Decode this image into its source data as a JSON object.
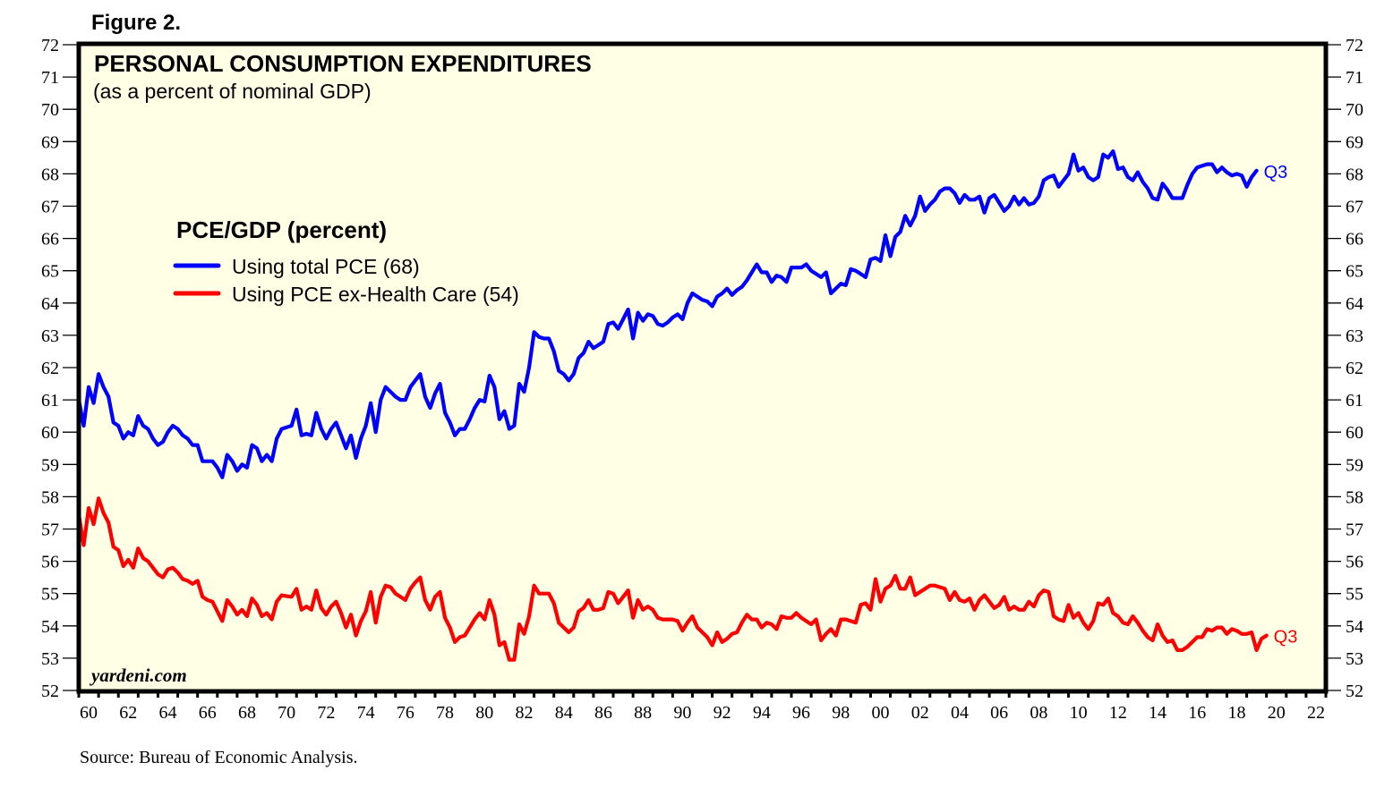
{
  "figure_label": "Figure 2.",
  "source": "Source: Bureau of Economic Analysis.",
  "watermark": "yardeni.com",
  "chart_data": {
    "type": "line",
    "title": "PERSONAL CONSUMPTION EXPENDITURES",
    "subtitle": "(as a percent of nominal GDP)",
    "legend_title": "PCE/GDP (percent)",
    "legend_position": "upper-left",
    "xlabel": "",
    "ylabel": "",
    "xlim": [
      1960,
      2023
    ],
    "ylim": [
      52,
      72
    ],
    "y_ticks": [
      52,
      53,
      54,
      55,
      56,
      57,
      58,
      59,
      60,
      61,
      62,
      63,
      64,
      65,
      66,
      67,
      68,
      69,
      70,
      71,
      72
    ],
    "x_tick_labels": [
      "60",
      "62",
      "64",
      "66",
      "68",
      "70",
      "72",
      "74",
      "76",
      "78",
      "80",
      "82",
      "84",
      "86",
      "88",
      "90",
      "92",
      "94",
      "96",
      "98",
      "00",
      "02",
      "04",
      "06",
      "08",
      "10",
      "12",
      "14",
      "16",
      "18",
      "20",
      "22"
    ],
    "x_tick_label_years": [
      1960,
      1962,
      1964,
      1966,
      1968,
      1970,
      1972,
      1974,
      1976,
      1978,
      1980,
      1982,
      1984,
      1986,
      1988,
      1990,
      1992,
      1994,
      1996,
      1998,
      2000,
      2002,
      2004,
      2006,
      2008,
      2010,
      2012,
      2014,
      2016,
      2018,
      2020,
      2022
    ],
    "grid": false,
    "background": "#FFFFE6",
    "series": [
      {
        "name": "Using total PCE (68)",
        "color": "#0000FF",
        "end_label": "Q3",
        "frequency": "quarterly",
        "start": 1960.0,
        "values": [
          61.0,
          60.2,
          61.4,
          60.9,
          61.8,
          61.4,
          61.1,
          60.3,
          60.2,
          59.8,
          60.0,
          59.9,
          60.5,
          60.2,
          60.1,
          59.8,
          59.6,
          59.7,
          60.0,
          60.2,
          60.1,
          59.9,
          59.8,
          59.6,
          59.6,
          59.1,
          59.1,
          59.1,
          58.9,
          58.6,
          59.3,
          59.1,
          58.8,
          59.0,
          58.9,
          59.6,
          59.5,
          59.1,
          59.3,
          59.1,
          59.8,
          60.1,
          60.15,
          60.2,
          60.7,
          59.9,
          59.95,
          59.9,
          60.6,
          60.1,
          59.8,
          60.1,
          60.3,
          59.9,
          59.5,
          59.9,
          59.2,
          59.8,
          60.2,
          60.9,
          60.0,
          61.0,
          61.4,
          61.25,
          61.1,
          61.0,
          61.0,
          61.4,
          61.6,
          61.8,
          61.1,
          60.75,
          61.2,
          61.5,
          60.6,
          60.3,
          59.9,
          60.1,
          60.1,
          60.4,
          60.75,
          61.0,
          60.95,
          61.75,
          61.4,
          60.4,
          60.65,
          60.1,
          60.2,
          61.5,
          61.25,
          62.0,
          63.1,
          62.95,
          62.9,
          62.9,
          62.5,
          61.9,
          61.8,
          61.6,
          61.8,
          62.3,
          62.45,
          62.8,
          62.6,
          62.7,
          62.8,
          63.35,
          63.4,
          63.2,
          63.5,
          63.8,
          62.9,
          63.7,
          63.45,
          63.65,
          63.6,
          63.35,
          63.3,
          63.4,
          63.55,
          63.65,
          63.5,
          64.0,
          64.3,
          64.2,
          64.1,
          64.05,
          63.9,
          64.2,
          64.3,
          64.45,
          64.25,
          64.4,
          64.5,
          64.7,
          64.95,
          65.2,
          64.95,
          64.95,
          64.65,
          64.85,
          64.8,
          64.65,
          65.1,
          65.1,
          65.1,
          65.2,
          65.0,
          64.9,
          64.8,
          64.95,
          64.3,
          64.45,
          64.6,
          64.55,
          65.05,
          65.0,
          64.9,
          64.8,
          65.35,
          65.4,
          65.3,
          66.1,
          65.45,
          66.05,
          66.2,
          66.7,
          66.4,
          66.7,
          67.3,
          66.85,
          67.05,
          67.2,
          67.45,
          67.55,
          67.55,
          67.4,
          67.1,
          67.35,
          67.2,
          67.2,
          67.3,
          66.8,
          67.25,
          67.35,
          67.1,
          66.85,
          67.0,
          67.3,
          67.05,
          67.25,
          67.05,
          67.1,
          67.3,
          67.8,
          67.9,
          67.95,
          67.6,
          67.8,
          68.0,
          68.6,
          68.1,
          68.2,
          67.9,
          67.8,
          67.9,
          68.6,
          68.5,
          68.7,
          68.15,
          68.2,
          67.9,
          67.8,
          68.05,
          67.75,
          67.55,
          67.25,
          67.2,
          67.7,
          67.5,
          67.25,
          67.25,
          67.25,
          67.65,
          68.0,
          68.2,
          68.25,
          68.3,
          68.3,
          68.05,
          68.2,
          68.05,
          67.95,
          68.0,
          67.95,
          67.6,
          67.9,
          68.1
        ]
      },
      {
        "name": "Using PCE ex-Health Care (54)",
        "color": "#FF0000",
        "end_label": "Q3",
        "frequency": "quarterly",
        "start": 1960.0,
        "values": [
          57.45,
          56.5,
          57.65,
          57.15,
          57.95,
          57.5,
          57.2,
          56.45,
          56.35,
          55.85,
          56.05,
          55.8,
          56.4,
          56.1,
          56.0,
          55.8,
          55.6,
          55.5,
          55.75,
          55.8,
          55.65,
          55.45,
          55.4,
          55.3,
          55.4,
          54.9,
          54.8,
          54.75,
          54.45,
          54.15,
          54.8,
          54.6,
          54.35,
          54.5,
          54.3,
          54.85,
          54.65,
          54.3,
          54.4,
          54.2,
          54.75,
          54.95,
          54.92,
          54.9,
          55.15,
          54.5,
          54.6,
          54.5,
          55.1,
          54.55,
          54.35,
          54.6,
          54.75,
          54.4,
          53.95,
          54.35,
          53.7,
          54.15,
          54.45,
          55.05,
          54.1,
          54.9,
          55.25,
          55.2,
          55.0,
          54.9,
          54.8,
          55.15,
          55.35,
          55.5,
          54.8,
          54.5,
          54.9,
          55.05,
          54.25,
          53.95,
          53.5,
          53.65,
          53.7,
          53.95,
          54.2,
          54.4,
          54.2,
          54.8,
          54.35,
          53.4,
          53.5,
          52.95,
          52.95,
          54.05,
          53.75,
          54.3,
          55.25,
          55.0,
          55.0,
          55.0,
          54.7,
          54.1,
          53.95,
          53.8,
          53.95,
          54.45,
          54.55,
          54.8,
          54.5,
          54.5,
          54.55,
          55.05,
          55.0,
          54.7,
          54.9,
          55.1,
          54.25,
          54.8,
          54.5,
          54.6,
          54.5,
          54.25,
          54.2,
          54.2,
          54.2,
          54.15,
          53.85,
          54.1,
          54.3,
          53.95,
          53.8,
          53.65,
          53.4,
          53.8,
          53.5,
          53.6,
          53.75,
          53.8,
          54.1,
          54.35,
          54.2,
          54.2,
          53.95,
          54.1,
          54.05,
          53.9,
          54.3,
          54.25,
          54.25,
          54.4,
          54.25,
          54.15,
          54.05,
          54.2,
          53.55,
          53.75,
          53.9,
          53.7,
          54.2,
          54.2,
          54.15,
          54.1,
          54.65,
          54.7,
          54.5,
          55.45,
          54.75,
          55.15,
          55.25,
          55.55,
          55.15,
          55.15,
          55.5,
          54.95,
          55.05,
          55.15,
          55.25,
          55.25,
          55.2,
          55.15,
          54.8,
          55.05,
          54.8,
          54.75,
          54.85,
          54.5,
          54.8,
          54.95,
          54.75,
          54.55,
          54.65,
          54.9,
          54.5,
          54.6,
          54.5,
          54.5,
          54.75,
          54.6,
          54.95,
          55.1,
          55.05,
          54.3,
          54.2,
          54.15,
          54.65,
          54.25,
          54.4,
          54.1,
          53.9,
          54.15,
          54.7,
          54.65,
          54.85,
          54.4,
          54.3,
          54.1,
          54.05,
          54.3,
          54.1,
          53.85,
          53.65,
          53.55,
          54.05,
          53.7,
          53.5,
          53.55,
          53.25,
          53.25,
          53.35,
          53.5,
          53.65,
          53.65,
          53.9,
          53.85,
          53.95,
          53.95,
          53.75,
          53.9,
          53.85,
          53.75,
          53.75,
          53.8,
          53.25,
          53.6,
          53.7
        ]
      }
    ]
  }
}
